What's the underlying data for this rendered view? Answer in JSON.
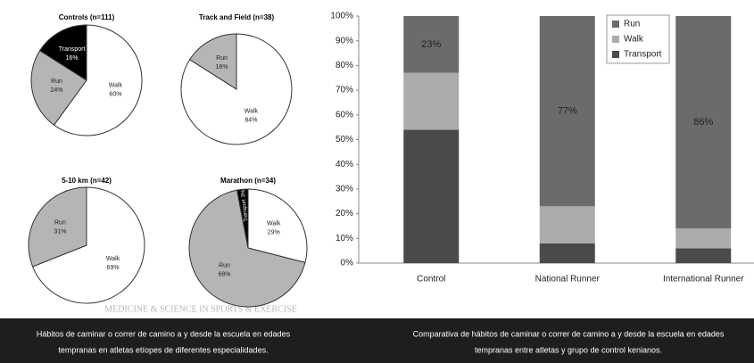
{
  "chart_data": [
    {
      "type": "pie",
      "title": "Controls (n=111)",
      "labels": [
        "Walk",
        "Run",
        "Transport"
      ],
      "values": [
        60,
        24,
        16
      ],
      "value_labels": [
        "60%",
        "24%",
        "16%"
      ],
      "colors": [
        "#ffffff",
        "#b5b5b5",
        "#000000"
      ]
    },
    {
      "type": "pie",
      "title": "Track and Field (n=38)",
      "labels": [
        "Walk",
        "Run"
      ],
      "values": [
        84,
        16
      ],
      "value_labels": [
        "84%",
        "16%"
      ],
      "colors": [
        "#ffffff",
        "#b5b5b5"
      ]
    },
    {
      "type": "pie",
      "title": "5-10 km (n=42)",
      "labels": [
        "Walk",
        "Run"
      ],
      "values": [
        69,
        31
      ],
      "value_labels": [
        "69%",
        "31%"
      ],
      "colors": [
        "#ffffff",
        "#b5b5b5"
      ]
    },
    {
      "type": "pie",
      "title": "Marathon (n=34)",
      "labels": [
        "Walk",
        "Run",
        "Transport"
      ],
      "values": [
        29,
        68,
        3
      ],
      "value_labels": [
        "29%",
        "68%",
        "3%"
      ],
      "colors": [
        "#ffffff",
        "#b5b5b5",
        "#000000"
      ]
    },
    {
      "type": "stacked_bar",
      "categories": [
        "Control",
        "National Runner",
        "International Runner"
      ],
      "series": [
        {
          "name": "Run",
          "color": "#6b6b6b",
          "values": [
            23,
            77,
            86
          ],
          "value_labels": [
            "23%",
            "77%",
            "86%"
          ]
        },
        {
          "name": "Walk",
          "color": "#ababab",
          "values": [
            23,
            15,
            8
          ]
        },
        {
          "name": "Transport",
          "color": "#4a4a4a",
          "values": [
            54,
            8,
            6
          ]
        }
      ],
      "ylim": [
        0,
        100
      ],
      "yticks": [
        {
          "value": 0,
          "label": "0%"
        },
        {
          "value": 10,
          "label": "10%"
        },
        {
          "value": 20,
          "label": "20%"
        },
        {
          "value": 30,
          "label": "30%"
        },
        {
          "value": 40,
          "label": "40%"
        },
        {
          "value": 50,
          "label": "50%"
        },
        {
          "value": 60,
          "label": "60%"
        },
        {
          "value": 70,
          "label": "70%"
        },
        {
          "value": 80,
          "label": "80%"
        },
        {
          "value": 90,
          "label": "90%"
        },
        {
          "value": 100,
          "label": "100%"
        }
      ],
      "legend": "upper right"
    }
  ],
  "watermark": "MEDICINE & SCIENCE IN SPORTS & EXERCISE",
  "captions": [
    [
      "Hábitos de caminar o correr de camino a y desde la escuela en edades",
      "tempranas en atletas etíopes de diferentes especialidades."
    ],
    [
      "Comparativa de hábitos de caminar o correr de camino a y desde la escuela en edades",
      "tempranas entre atletas y grupo de control kenianos."
    ]
  ]
}
